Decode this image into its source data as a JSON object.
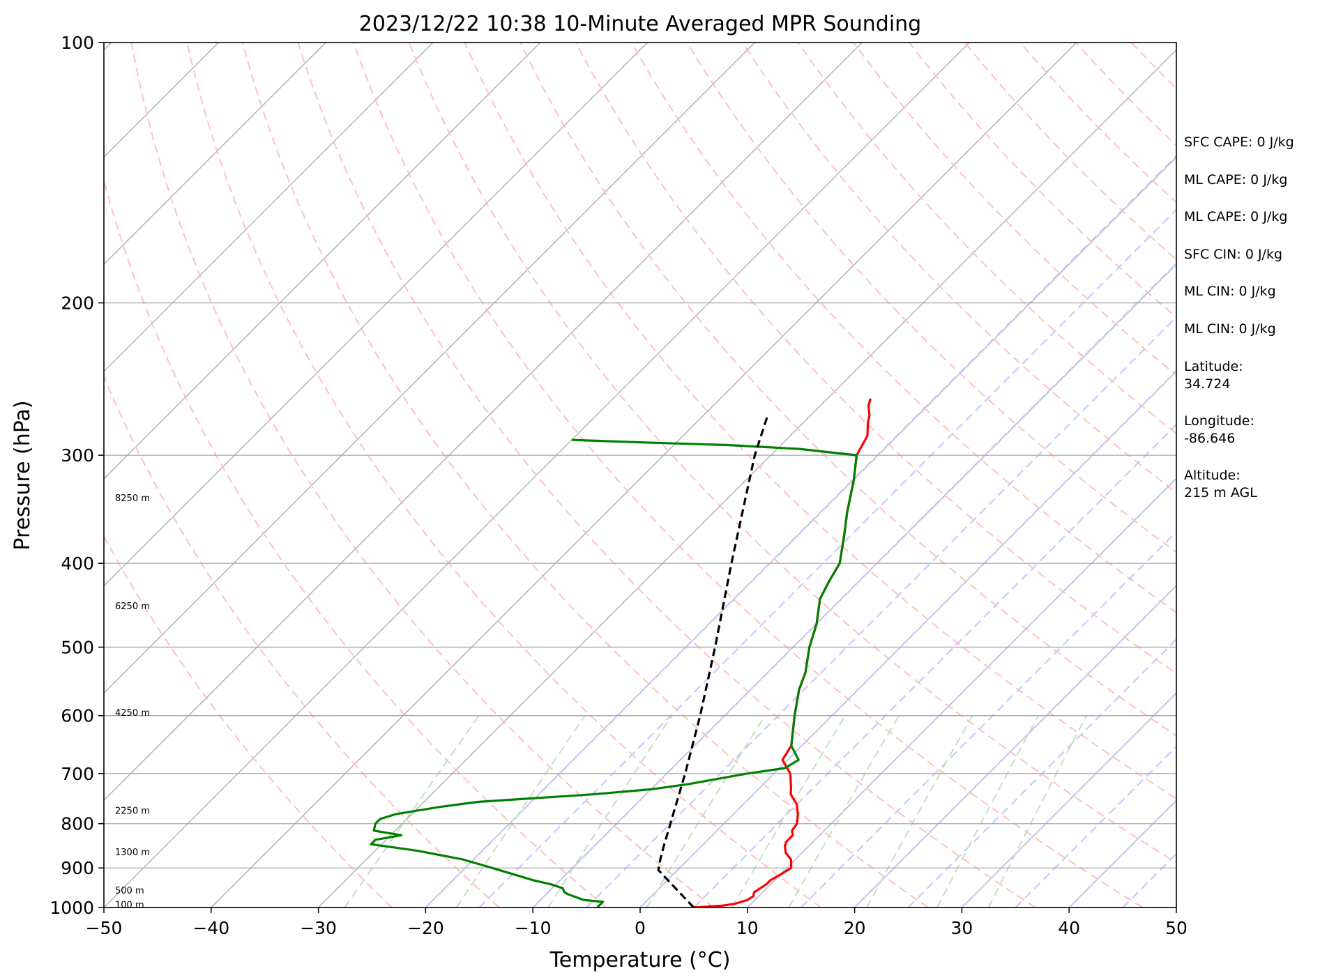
{
  "chart_data": {
    "type": "line",
    "title": "2023/12/22 10:38 10-Minute Averaged MPR Sounding",
    "xlabel": "Temperature (°C)",
    "ylabel": "Pressure (hPa)",
    "xlim": [
      -50,
      50
    ],
    "ylim": [
      1000,
      100
    ],
    "y_scale": "log",
    "skew": "skew-T (isotherms at 45°)",
    "grid": true,
    "x_ticks": [
      "−50",
      "−40",
      "−30",
      "−20",
      "−10",
      "0",
      "10",
      "20",
      "30",
      "40",
      "50"
    ],
    "y_ticks": [
      "100",
      "200",
      "300",
      "400",
      "500",
      "600",
      "700",
      "800",
      "900",
      "1000"
    ],
    "height_labels": [
      {
        "p": 992,
        "label": "100 m"
      },
      {
        "p": 955,
        "label": "500 m"
      },
      {
        "p": 862,
        "label": "1300 m"
      },
      {
        "p": 772,
        "label": "2250 m"
      },
      {
        "p": 595,
        "label": "4250 m"
      },
      {
        "p": 448,
        "label": "6250 m"
      },
      {
        "p": 336,
        "label": "8250 m"
      }
    ],
    "series": [
      {
        "key": "temperature",
        "color": "#ff0000",
        "points": [
          [
            1000,
            5.0
          ],
          [
            995,
            7.5
          ],
          [
            990,
            8.5
          ],
          [
            980,
            9.3
          ],
          [
            970,
            9.5
          ],
          [
            960,
            9.2
          ],
          [
            950,
            9.4
          ],
          [
            940,
            9.6
          ],
          [
            930,
            9.6
          ],
          [
            920,
            9.9
          ],
          [
            900,
            10.4
          ],
          [
            880,
            9.6
          ],
          [
            865,
            8.5
          ],
          [
            850,
            7.8
          ],
          [
            840,
            7.5
          ],
          [
            825,
            7.5
          ],
          [
            815,
            7.0
          ],
          [
            800,
            6.8
          ],
          [
            780,
            6.0
          ],
          [
            760,
            5.0
          ],
          [
            740,
            3.5
          ],
          [
            725,
            2.8
          ],
          [
            700,
            1.5
          ],
          [
            675,
            -0.5
          ],
          [
            650,
            -1.0
          ],
          [
            600,
            -3.5
          ],
          [
            560,
            -5.5
          ],
          [
            535,
            -6.5
          ],
          [
            500,
            -8.5
          ],
          [
            470,
            -10.0
          ],
          [
            440,
            -12.0
          ],
          [
            420,
            -12.8
          ],
          [
            400,
            -13.5
          ],
          [
            370,
            -15.8
          ],
          [
            350,
            -17.5
          ],
          [
            320,
            -20.0
          ],
          [
            300,
            -22.0
          ],
          [
            285,
            -22.8
          ],
          [
            275,
            -24.0
          ],
          [
            270,
            -24.5
          ],
          [
            263,
            -25.5
          ],
          [
            258,
            -26.0
          ]
        ]
      },
      {
        "key": "dewpoint",
        "color": "#008000",
        "points": [
          [
            1000,
            -4.0
          ],
          [
            985,
            -4.0
          ],
          [
            980,
            -6.0
          ],
          [
            965,
            -8.0
          ],
          [
            960,
            -8.5
          ],
          [
            950,
            -9.0
          ],
          [
            940,
            -10.5
          ],
          [
            930,
            -12.5
          ],
          [
            900,
            -17.5
          ],
          [
            880,
            -21.0
          ],
          [
            860,
            -26.0
          ],
          [
            845,
            -31.0
          ],
          [
            835,
            -31.0
          ],
          [
            825,
            -29.0
          ],
          [
            815,
            -32.0
          ],
          [
            800,
            -32.5
          ],
          [
            790,
            -32.5
          ],
          [
            780,
            -31.5
          ],
          [
            765,
            -28.0
          ],
          [
            755,
            -25.0
          ],
          [
            740,
            -15.0
          ],
          [
            730,
            -10.0
          ],
          [
            720,
            -7.0
          ],
          [
            700,
            -2.5
          ],
          [
            690,
            0.5
          ],
          [
            675,
            1.0
          ],
          [
            650,
            -1.0
          ],
          [
            600,
            -3.5
          ],
          [
            560,
            -5.5
          ],
          [
            535,
            -6.5
          ],
          [
            500,
            -8.5
          ],
          [
            470,
            -10.0
          ],
          [
            440,
            -12.0
          ],
          [
            420,
            -12.8
          ],
          [
            400,
            -13.5
          ],
          [
            370,
            -15.8
          ],
          [
            350,
            -17.5
          ],
          [
            320,
            -20.0
          ],
          [
            300,
            -22.0
          ],
          [
            295,
            -28.0
          ],
          [
            292,
            -35.0
          ],
          [
            290,
            -43.0
          ],
          [
            288,
            -50.0
          ]
        ]
      },
      {
        "key": "parcel-profile",
        "color": "#000000",
        "dashed": true,
        "points": [
          [
            1000,
            5.0
          ],
          [
            950,
            1.5
          ],
          [
            905,
            -1.8
          ],
          [
            880,
            -2.6
          ],
          [
            850,
            -3.5
          ],
          [
            800,
            -5.0
          ],
          [
            700,
            -8.3
          ],
          [
            600,
            -12.3
          ],
          [
            500,
            -17.3
          ],
          [
            400,
            -23.6
          ],
          [
            300,
            -31.5
          ],
          [
            270,
            -34.0
          ]
        ]
      }
    ]
  },
  "stats": {
    "sfc_cape": "SFC CAPE: 0 J/kg",
    "ml_cape_1": "ML CAPE: 0 J/kg",
    "ml_cape_2": "ML CAPE: 0 J/kg",
    "sfc_cin": "SFC CIN: 0 J/kg",
    "ml_cin_1": "ML CIN: 0 J/kg",
    "ml_cin_2": "ML CIN: 0 J/kg",
    "latitude_label": "Latitude:",
    "latitude_value": "34.724",
    "longitude_label": "Longitude:",
    "longitude_value": "-86.646",
    "altitude_label": "Altitude:",
    "altitude_value": "215 m AGL"
  },
  "colors": {
    "isotherm": "#a9a9a9",
    "dry_adiabat": "#ffc0c0",
    "moist_adiabat": "#c8c8ff",
    "mixing_ratio": "#c2e0c2"
  }
}
